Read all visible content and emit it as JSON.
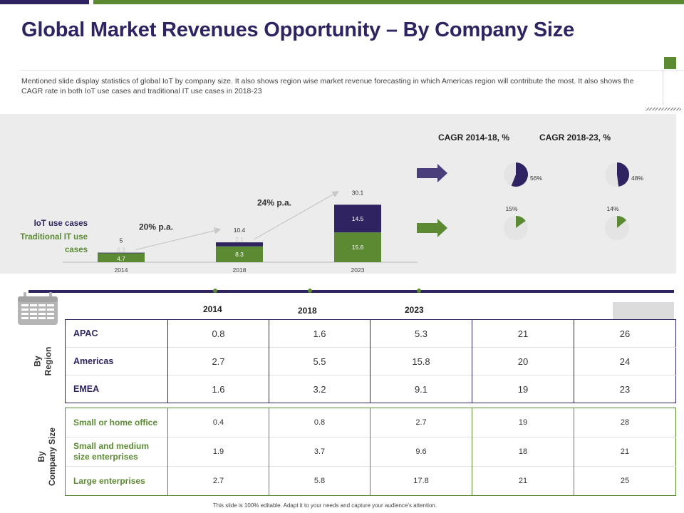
{
  "title": "Global Market Revenues Opportunity – By Company Size",
  "description": "Mentioned slide display statistics of global IoT by company size. It also shows region wise market revenue forecasting in which Americas region will contribute the most. It also shows the CAGR rate in both IoT use cases and traditional IT use cases in 2018-23",
  "colors": {
    "iot": "#2f2461",
    "traditional": "#5b8a33",
    "pie_rest": "#e4e4e4"
  },
  "chart_data": {
    "type": "bar",
    "stacked": true,
    "categories": [
      "2014",
      "2018",
      "2023"
    ],
    "series": [
      {
        "name": "Traditional IT use cases",
        "values": [
          4.7,
          8.3,
          15.6
        ]
      },
      {
        "name": "IoT use cases",
        "values": [
          0.3,
          2.1,
          14.5
        ]
      }
    ],
    "totals": [
      5,
      10.4,
      30.1
    ],
    "growth_annotations": [
      {
        "label": "20% p.a.",
        "from": "2014",
        "to": "2018"
      },
      {
        "label": "24% p.a.",
        "from": "2018",
        "to": "2023"
      }
    ],
    "legend": [
      "IoT use cases",
      "Traditional IT use cases"
    ],
    "legend_position": "left",
    "cagr": {
      "headers": [
        "CAGR 2014-18, %",
        "CAGR 2018-23, %"
      ],
      "iot": [
        56,
        48
      ],
      "traditional": [
        15,
        14
      ],
      "iot_labels": [
        "56%",
        "48%"
      ],
      "traditional_labels": [
        "15%",
        "14%"
      ]
    }
  },
  "table": {
    "years": [
      "2014",
      "2018",
      "2023"
    ],
    "by_region_label": "By Region",
    "by_company_label": "By Company Size",
    "region_rows": [
      {
        "label": "APAC",
        "values": [
          "0.8",
          "1.6",
          "5.3",
          "21",
          "26"
        ]
      },
      {
        "label": "Americas",
        "values": [
          "2.7",
          "5.5",
          "15.8",
          "20",
          "24"
        ]
      },
      {
        "label": "EMEA",
        "values": [
          "1.6",
          "3.2",
          "9.1",
          "19",
          "23"
        ]
      }
    ],
    "company_rows": [
      {
        "label": "Small or home office",
        "values": [
          "0.4",
          "0.8",
          "2.7",
          "19",
          "28"
        ]
      },
      {
        "label": "Small and medium size enterprises",
        "values": [
          "1.9",
          "3.7",
          "9.6",
          "18",
          "21"
        ]
      },
      {
        "label": "Large enterprises",
        "values": [
          "2.7",
          "5.8",
          "17.8",
          "21",
          "25"
        ]
      }
    ]
  },
  "footer": "This slide is 100% editable. Adapt it to your needs and capture your audience's attention."
}
